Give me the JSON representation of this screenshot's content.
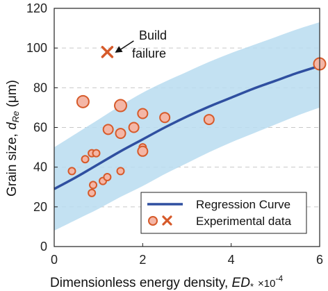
{
  "chart_data": {
    "type": "scatter",
    "title": "",
    "xlabel_prefix": "Dimensionless energy density, ",
    "xlabel_symbol": "ED",
    "xlabel_subscript": "*",
    "xlabel_multiplier": "×10",
    "xlabel_exponent": "-4",
    "ylabel_prefix": "Grain size, ",
    "ylabel_symbol": "d",
    "ylabel_subscript": "Re",
    "ylabel_suffix": " (μm)",
    "xlim": [
      0,
      6
    ],
    "ylim": [
      0,
      120
    ],
    "xticks": [
      0,
      2,
      4,
      6
    ],
    "yticks": [
      0,
      20,
      40,
      60,
      80,
      100,
      120
    ],
    "grid": "horizontal dashed",
    "legend_position": "bottom-right",
    "regression": {
      "name": "Regression Curve",
      "color": "#2f4fa0",
      "band_color": "#b9dcf0",
      "x": [
        0.0,
        0.5,
        1.0,
        1.5,
        2.0,
        2.5,
        3.0,
        3.5,
        4.0,
        4.5,
        5.0,
        5.5,
        6.0
      ],
      "y": [
        29,
        35,
        41.5,
        48,
        54,
        60,
        65.5,
        70.5,
        75,
        79.5,
        83.5,
        87.5,
        91
      ],
      "upper": [
        50,
        57,
        64,
        71,
        77.5,
        83,
        88,
        93,
        97.5,
        101.5,
        105.5,
        109.5,
        113
      ],
      "lower": [
        8,
        13.5,
        19,
        25,
        30.5,
        36.5,
        42,
        47.5,
        52.5,
        57,
        61.5,
        66,
        70
      ]
    },
    "series": [
      {
        "name": "Experimental data",
        "marker": "circle",
        "color": "#f4b6a6",
        "edge_color": "#d65a2a",
        "points": [
          {
            "x": 0.4,
            "y": 38,
            "size": "small"
          },
          {
            "x": 0.65,
            "y": 73,
            "size": "large"
          },
          {
            "x": 0.7,
            "y": 44,
            "size": "small"
          },
          {
            "x": 0.85,
            "y": 47,
            "size": "small"
          },
          {
            "x": 0.95,
            "y": 47,
            "size": "small"
          },
          {
            "x": 0.88,
            "y": 31,
            "size": "small"
          },
          {
            "x": 0.85,
            "y": 27,
            "size": "small"
          },
          {
            "x": 1.1,
            "y": 33,
            "size": "small"
          },
          {
            "x": 1.2,
            "y": 35,
            "size": "small"
          },
          {
            "x": 1.22,
            "y": 59,
            "size": "medium"
          },
          {
            "x": 1.5,
            "y": 71,
            "size": "large"
          },
          {
            "x": 1.5,
            "y": 57,
            "size": "medium"
          },
          {
            "x": 1.5,
            "y": 38,
            "size": "small"
          },
          {
            "x": 1.8,
            "y": 60,
            "size": "medium"
          },
          {
            "x": 2.0,
            "y": 67,
            "size": "medium"
          },
          {
            "x": 2.0,
            "y": 50,
            "size": "small"
          },
          {
            "x": 2.0,
            "y": 48,
            "size": "medium"
          },
          {
            "x": 2.5,
            "y": 65,
            "size": "medium"
          },
          {
            "x": 3.5,
            "y": 64,
            "size": "medium"
          },
          {
            "x": 6.0,
            "y": 92,
            "size": "large"
          }
        ]
      },
      {
        "name": "Build failure",
        "marker": "x",
        "color": "#d65a2a",
        "points": [
          {
            "x": 1.2,
            "y": 98
          }
        ]
      }
    ],
    "annotation": {
      "lines": [
        "Build",
        "failure"
      ],
      "target_x": 1.2,
      "target_y": 98
    }
  }
}
